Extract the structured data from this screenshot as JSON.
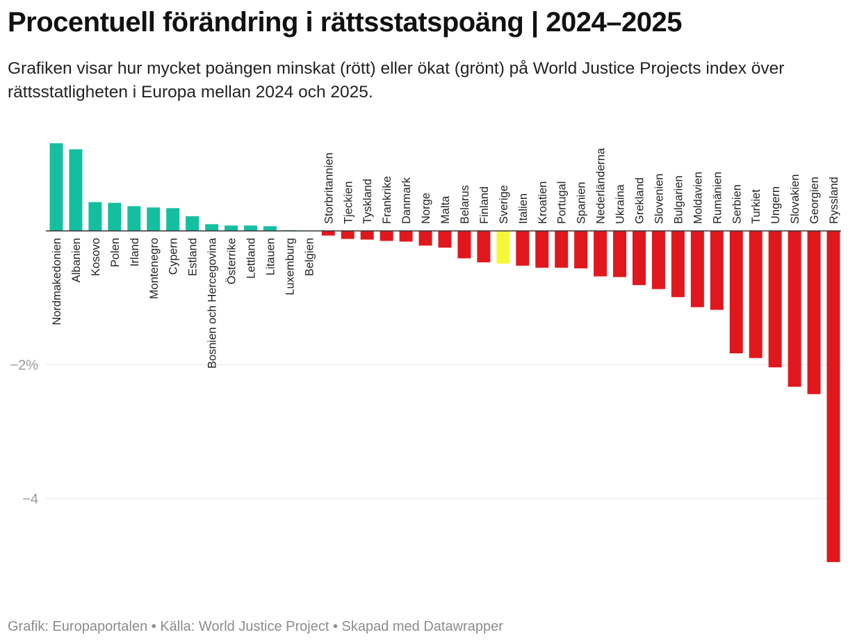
{
  "title": "Procentuell förändring i rättsstatspoäng | 2024–2025",
  "subtitle": "Grafiken visar hur mycket poängen minskat (rött) eller ökat (grönt) på World Justice Projects index över rättsstatligheten i Europa mellan 2024 och 2025.",
  "footer": "Grafik: Europaportalen • Källa: World Justice Project • Skapad med Datawrapper",
  "colors": {
    "positive": "#14bf9f",
    "negative": "#e0181d",
    "highlight": "#f7f73a"
  },
  "chart_data": {
    "type": "bar",
    "orientation": "vertical",
    "ylabel": "",
    "xlabel": "",
    "ylim": [
      -4.95,
      1.45
    ],
    "yticks": [
      {
        "value": -2,
        "label": "−2%"
      },
      {
        "value": -4,
        "label": "−4"
      }
    ],
    "grid": true,
    "highlight_category": "Sverige",
    "categories": [
      "Nordmakedonien",
      "Albanien",
      "Kosovo",
      "Polen",
      "Irland",
      "Montenegro",
      "Cypern",
      "Estland",
      "Bosnien och Hercegovina",
      "Österrike",
      "Lettland",
      "Litauen",
      "Luxemburg",
      "Belgien",
      "Storbritannien",
      "Tjeckien",
      "Tyskland",
      "Frankrike",
      "Danmark",
      "Norge",
      "Malta",
      "Belarus",
      "Finland",
      "Sverige",
      "Italien",
      "Kroatien",
      "Portugal",
      "Spanien",
      "Nederländerna",
      "Ukraina",
      "Grekland",
      "Slovenien",
      "Bulgarien",
      "Moldavien",
      "Rumänien",
      "Serbien",
      "Turkiet",
      "Ungern",
      "Slovakien",
      "Georgien",
      "Ryssland"
    ],
    "values": [
      1.31,
      1.22,
      0.43,
      0.42,
      0.37,
      0.35,
      0.34,
      0.22,
      0.1,
      0.08,
      0.08,
      0.07,
      0.01,
      0.0,
      -0.07,
      -0.12,
      -0.13,
      -0.15,
      -0.16,
      -0.22,
      -0.25,
      -0.41,
      -0.47,
      -0.49,
      -0.52,
      -0.55,
      -0.55,
      -0.56,
      -0.68,
      -0.69,
      -0.81,
      -0.87,
      -0.99,
      -1.14,
      -1.18,
      -1.83,
      -1.9,
      -2.04,
      -2.33,
      -2.44,
      -4.95
    ]
  }
}
